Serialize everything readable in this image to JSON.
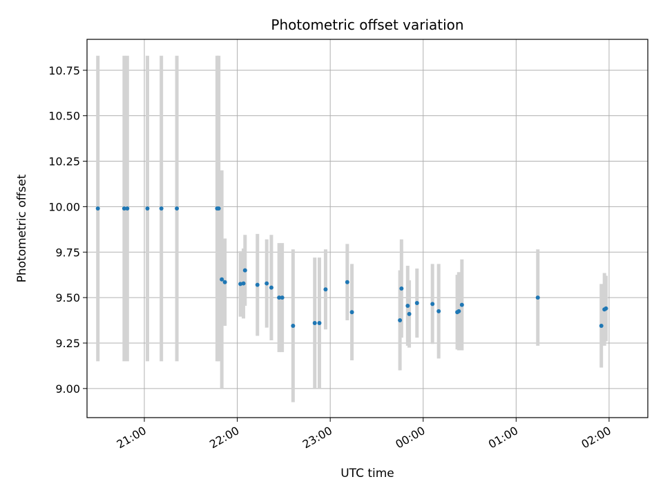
{
  "chart_data": {
    "type": "scatter",
    "title": "Photometric offset variation",
    "xlabel": "UTC time",
    "ylabel": "Photometric offset",
    "x_axis": "time",
    "xlim": [
      "20:23",
      "02:25"
    ],
    "ylim": [
      8.84,
      10.92
    ],
    "x_ticks": [
      "21:00",
      "22:00",
      "23:00",
      "00:00",
      "01:00",
      "02:00"
    ],
    "y_ticks": [
      "9.00",
      "9.25",
      "9.50",
      "9.75",
      "10.00",
      "10.25",
      "10.50",
      "10.75"
    ],
    "grid": true,
    "marker_color": "#1f77b4",
    "errorbar_color": "#d3d3d3",
    "points": [
      {
        "x": "20:30",
        "y": 9.99,
        "yerr": [
          9.15,
          10.83
        ]
      },
      {
        "x": "20:47",
        "y": 9.99,
        "yerr": [
          9.15,
          10.83
        ]
      },
      {
        "x": "20:49",
        "y": 9.99,
        "yerr": [
          9.15,
          10.83
        ]
      },
      {
        "x": "21:02",
        "y": 9.99,
        "yerr": [
          9.15,
          10.83
        ]
      },
      {
        "x": "21:11",
        "y": 9.99,
        "yerr": [
          9.15,
          10.83
        ]
      },
      {
        "x": "21:21",
        "y": 9.99,
        "yerr": [
          9.15,
          10.83
        ]
      },
      {
        "x": "21:47",
        "y": 9.99,
        "yerr": [
          9.15,
          10.83
        ]
      },
      {
        "x": "21:48",
        "y": 9.99,
        "yerr": [
          9.15,
          10.83
        ]
      },
      {
        "x": "21:50",
        "y": 9.6,
        "yerr": [
          9.0,
          10.2
        ]
      },
      {
        "x": "21:52",
        "y": 9.585,
        "yerr": [
          9.345,
          9.825
        ]
      },
      {
        "x": "22:02",
        "y": 9.575,
        "yerr": [
          9.395,
          9.755
        ]
      },
      {
        "x": "22:04",
        "y": 9.578,
        "yerr": [
          9.385,
          9.77
        ]
      },
      {
        "x": "22:05",
        "y": 9.65,
        "yerr": [
          9.455,
          9.845
        ]
      },
      {
        "x": "22:13",
        "y": 9.57,
        "yerr": [
          9.29,
          9.85
        ]
      },
      {
        "x": "22:19",
        "y": 9.578,
        "yerr": [
          9.335,
          9.82
        ]
      },
      {
        "x": "22:22",
        "y": 9.555,
        "yerr": [
          9.265,
          9.845
        ]
      },
      {
        "x": "22:27",
        "y": 9.5,
        "yerr": [
          9.2,
          9.8
        ]
      },
      {
        "x": "22:29",
        "y": 9.5,
        "yerr": [
          9.2,
          9.8
        ]
      },
      {
        "x": "22:36",
        "y": 9.345,
        "yerr": [
          8.925,
          9.765
        ]
      },
      {
        "x": "22:50",
        "y": 9.36,
        "yerr": [
          9.0,
          9.72
        ]
      },
      {
        "x": "22:53",
        "y": 9.36,
        "yerr": [
          9.0,
          9.72
        ]
      },
      {
        "x": "22:57",
        "y": 9.545,
        "yerr": [
          9.325,
          9.765
        ]
      },
      {
        "x": "23:11",
        "y": 9.585,
        "yerr": [
          9.375,
          9.795
        ]
      },
      {
        "x": "23:14",
        "y": 9.42,
        "yerr": [
          9.155,
          9.685
        ]
      },
      {
        "x": "23:45",
        "y": 9.375,
        "yerr": [
          9.1,
          9.65
        ]
      },
      {
        "x": "23:46",
        "y": 9.55,
        "yerr": [
          9.28,
          9.82
        ]
      },
      {
        "x": "23:50",
        "y": 9.455,
        "yerr": [
          9.235,
          9.675
        ]
      },
      {
        "x": "23:51",
        "y": 9.41,
        "yerr": [
          9.225,
          9.595
        ]
      },
      {
        "x": "23:56",
        "y": 9.47,
        "yerr": [
          9.28,
          9.66
        ]
      },
      {
        "x": "00:06",
        "y": 9.465,
        "yerr": [
          9.245,
          9.685
        ]
      },
      {
        "x": "00:10",
        "y": 9.425,
        "yerr": [
          9.165,
          9.685
        ]
      },
      {
        "x": "00:22",
        "y": 9.42,
        "yerr": [
          9.215,
          9.625
        ]
      },
      {
        "x": "00:23",
        "y": 9.425,
        "yerr": [
          9.21,
          9.64
        ]
      },
      {
        "x": "00:25",
        "y": 9.46,
        "yerr": [
          9.21,
          9.71
        ]
      },
      {
        "x": "01:14",
        "y": 9.5,
        "yerr": [
          9.235,
          9.765
        ]
      },
      {
        "x": "01:55",
        "y": 9.345,
        "yerr": [
          9.115,
          9.575
        ]
      },
      {
        "x": "01:57",
        "y": 9.435,
        "yerr": [
          9.235,
          9.635
        ]
      },
      {
        "x": "01:58",
        "y": 9.44,
        "yerr": [
          9.26,
          9.62
        ]
      }
    ]
  }
}
